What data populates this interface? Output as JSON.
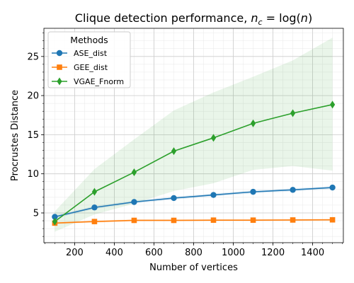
{
  "chart_data": {
    "type": "line",
    "title_main": "Clique detection performance, ",
    "title_math": "n",
    "title_sub": "c",
    "title_rest": " = log(",
    "title_math2": "n",
    "title_end": ")",
    "xlabel": "Number of vertices",
    "ylabel": "Procrustes Distance",
    "xlim": [
      45,
      1555
    ],
    "ylim": [
      1.2,
      28.6
    ],
    "xticks": [
      200,
      400,
      600,
      800,
      1000,
      1200,
      1400
    ],
    "yticks": [
      5,
      10,
      15,
      20,
      25
    ],
    "grid": true,
    "legend": {
      "title": "Methods",
      "position": "top-left"
    },
    "x": [
      100,
      300,
      500,
      700,
      900,
      1100,
      1300,
      1500
    ],
    "series": [
      {
        "name": "ASE_dist",
        "color": "#1f77b4",
        "marker": "circle",
        "values": [
          4.5,
          5.7,
          6.4,
          6.9,
          7.3,
          7.7,
          7.95,
          8.25
        ],
        "band_low": [
          4.3,
          5.5,
          6.2,
          6.7,
          7.1,
          7.5,
          7.75,
          8.05
        ],
        "band_high": [
          4.7,
          5.9,
          6.6,
          7.1,
          7.5,
          7.9,
          8.15,
          8.45
        ]
      },
      {
        "name": "GEE_dist",
        "color": "#ff7f0e",
        "marker": "square",
        "values": [
          3.7,
          3.9,
          4.05,
          4.05,
          4.08,
          4.08,
          4.1,
          4.12
        ],
        "band_low": [
          3.55,
          3.75,
          3.9,
          3.92,
          3.95,
          3.95,
          3.97,
          3.99
        ],
        "band_high": [
          3.85,
          4.05,
          4.2,
          4.18,
          4.21,
          4.21,
          4.23,
          4.25
        ]
      },
      {
        "name": "VGAE_Fnorm",
        "color": "#2ca02c",
        "marker": "diamond",
        "values": [
          3.9,
          7.7,
          10.2,
          12.9,
          14.6,
          16.45,
          17.75,
          18.85
        ],
        "band_low": [
          2.6,
          4.8,
          6.2,
          7.8,
          8.8,
          10.5,
          11.0,
          10.4
        ],
        "band_high": [
          5.2,
          10.6,
          14.4,
          18.1,
          20.4,
          22.4,
          24.5,
          27.4
        ]
      }
    ]
  }
}
